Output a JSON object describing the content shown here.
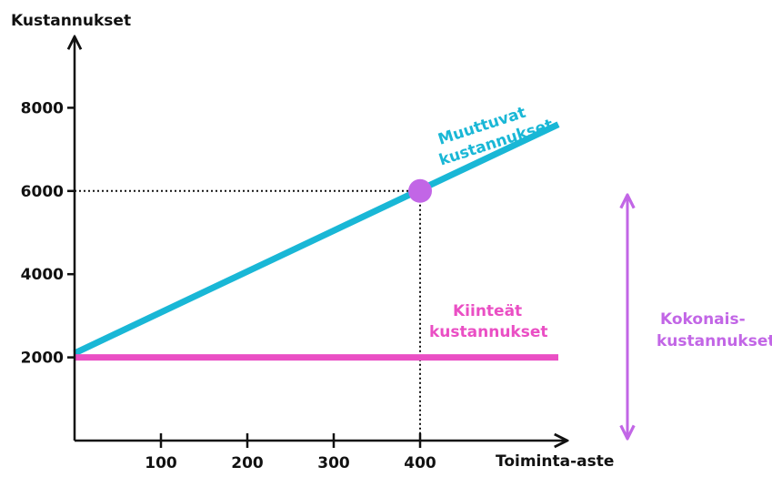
{
  "chart_data": {
    "type": "line",
    "ylabel": "Kustannukset",
    "xlabel": "Toiminta-aste",
    "x_ticks": [
      100,
      200,
      300,
      400
    ],
    "y_ticks": [
      2000,
      4000,
      6000,
      8000
    ],
    "series": [
      {
        "name": "Muuttuvat kustannukset",
        "label_lines": [
          "Muuttuvat",
          "kustannukset"
        ],
        "color": "#19b7d6",
        "points": [
          [
            0,
            2100
          ],
          [
            560,
            7600
          ]
        ]
      },
      {
        "name": "Kiinteät kustannukset",
        "label_lines": [
          "Kiinteät",
          "kustannukset"
        ],
        "color": "#ea4fc4",
        "points": [
          [
            0,
            2000
          ],
          [
            560,
            2000
          ]
        ]
      }
    ],
    "highlight_point": {
      "x": 400,
      "y": 6000,
      "color": "#c266e6"
    },
    "total_label_lines": [
      "Kokonais-",
      "kustannukset"
    ],
    "total_color": "#c266e6"
  }
}
